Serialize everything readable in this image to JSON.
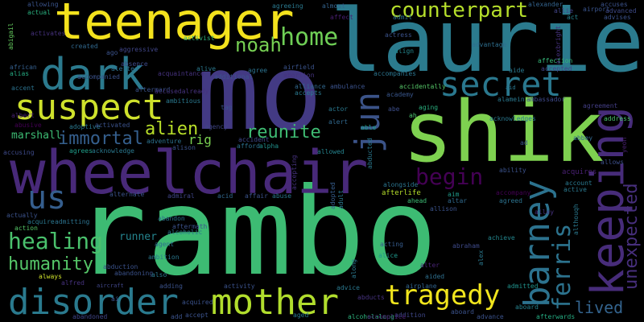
{
  "words": [
    {
      "text": "rambo",
      "color": "#3dbb73"
    },
    {
      "text": "mo",
      "color": "#433a84"
    },
    {
      "text": "laurie",
      "color": "#2b7b8e"
    },
    {
      "text": "shik",
      "color": "#7ed150"
    },
    {
      "text": "wheelchair",
      "color": "#482979"
    },
    {
      "text": "teenager",
      "color": "#f3e21d"
    },
    {
      "text": "keeping",
      "color": "#472c7a"
    },
    {
      "text": "dark",
      "color": "#2b7a8e"
    },
    {
      "text": "suspect",
      "color": "#cee12c"
    },
    {
      "text": "secret",
      "color": "#2a788e"
    },
    {
      "text": "barney",
      "color": "#2c728e"
    },
    {
      "text": "disorder",
      "color": "#2a7a8e"
    },
    {
      "text": "mother",
      "color": "#b1dd2d"
    },
    {
      "text": "jun",
      "color": "#3b5388"
    },
    {
      "text": "home",
      "color": "#6fcf56"
    },
    {
      "text": "us",
      "color": "#355e8d"
    },
    {
      "text": "tragedy",
      "color": "#f1e51d"
    },
    {
      "text": "ferris",
      "color": "#2c738e"
    },
    {
      "text": "counterpart",
      "color": "#b5de2b"
    },
    {
      "text": "noah",
      "color": "#77d153"
    },
    {
      "text": "begin",
      "color": "#440154"
    },
    {
      "text": "healing",
      "color": "#4ac16d"
    },
    {
      "text": "humanity",
      "color": "#55c668"
    },
    {
      "text": "immortal",
      "color": "#355f8d"
    },
    {
      "text": "alien",
      "color": "#b8de29"
    },
    {
      "text": "reunite",
      "color": "#3fbc73"
    },
    {
      "text": "unexpected",
      "color": "#472f7d"
    },
    {
      "text": "lived",
      "color": "#33638d"
    },
    {
      "text": "marshall",
      "color": "#3dbc74"
    },
    {
      "text": "rig",
      "color": "#7ad151"
    },
    {
      "text": "runner",
      "color": "#25848e"
    },
    {
      "text": "activist",
      "color": "#30b07a"
    },
    {
      "text": "allowing",
      "color": "#3a548c"
    },
    {
      "text": "actual",
      "color": "#2ab07f"
    },
    {
      "text": "abigail",
      "color": "#65cb5e"
    },
    {
      "text": "aircraft",
      "color": "#404688"
    },
    {
      "text": "african",
      "color": "#355f8d"
    },
    {
      "text": "alias",
      "color": "#25ab82"
    },
    {
      "text": "affection",
      "color": "#35b779"
    },
    {
      "text": "accepted",
      "color": "#414487"
    },
    {
      "text": "alexander",
      "color": "#33638d"
    },
    {
      "text": "aid",
      "color": "#2a768e"
    },
    {
      "text": "advises",
      "color": "#3b528b"
    },
    {
      "text": "ambassador",
      "color": "#3e4989"
    },
    {
      "text": "agreement",
      "color": "#433e85"
    },
    {
      "text": "address",
      "color": "#4ac16d"
    },
    {
      "text": "abbey",
      "color": "#31688e"
    },
    {
      "text": "allows",
      "color": "#3c4f8a"
    },
    {
      "text": "ability",
      "color": "#3b528b"
    },
    {
      "text": "accompany",
      "color": "#440154"
    },
    {
      "text": "agreed",
      "color": "#2c728e"
    },
    {
      "text": "alley",
      "color": "#46327e"
    },
    {
      "text": "achieve",
      "color": "#24878e"
    },
    {
      "text": "abraham",
      "color": "#3e4a89"
    },
    {
      "text": "aboard",
      "color": "#26828e"
    },
    {
      "text": "admitted",
      "color": "#20928c"
    },
    {
      "text": "afterwards",
      "color": "#25ac82"
    },
    {
      "text": "advance",
      "color": "#3b528b"
    },
    {
      "text": "alcoholalong",
      "color": "#2db27d"
    },
    {
      "text": "addition",
      "color": "#3f4788"
    },
    {
      "text": "advice",
      "color": "#2a788e"
    },
    {
      "text": "airplane",
      "color": "#32648e"
    },
    {
      "text": "abducts",
      "color": "#46337f"
    },
    {
      "text": "alice",
      "color": "#1f988b"
    },
    {
      "text": "acting",
      "color": "#365c8d"
    },
    {
      "text": "aided",
      "color": "#2e6f8e"
    },
    {
      "text": "alter",
      "color": "#482475"
    },
    {
      "text": "afterlife",
      "color": "#b5de2b"
    },
    {
      "text": "ahead",
      "color": "#3dbc74"
    },
    {
      "text": "allison",
      "color": "#3b528b"
    },
    {
      "text": "aim",
      "color": "#1f9a8a"
    },
    {
      "text": "altar",
      "color": "#306a8e"
    },
    {
      "text": "adopted",
      "color": "#365d8d"
    },
    {
      "text": "adult",
      "color": "#2a788e"
    },
    {
      "text": "allowed",
      "color": "#25838e"
    },
    {
      "text": "alert",
      "color": "#31688e"
    },
    {
      "text": "able",
      "color": "#1f9e89"
    },
    {
      "text": "alongside",
      "color": "#2b748e"
    },
    {
      "text": "accident",
      "color": "#3f4889"
    },
    {
      "text": "afford",
      "color": "#2c718e"
    },
    {
      "text": "alpha",
      "color": "#21918c"
    },
    {
      "text": "aging",
      "color": "#2ab07f"
    },
    {
      "text": "abe",
      "color": "#3d4e8a"
    },
    {
      "text": "academy",
      "color": "#39568c"
    },
    {
      "text": "ah",
      "color": "#4ac16d"
    },
    {
      "text": "actress",
      "color": "#3b528b"
    },
    {
      "text": "align",
      "color": "#24878e"
    },
    {
      "text": "agreeing",
      "color": "#2a788e"
    },
    {
      "text": "almost",
      "color": "#33638d"
    },
    {
      "text": "affect",
      "color": "#482071"
    },
    {
      "text": "admit",
      "color": "#2c728e"
    },
    {
      "text": "airport",
      "color": "#3a548c"
    },
    {
      "text": "act",
      "color": "#26828e"
    },
    {
      "text": "accuses",
      "color": "#3b528b"
    },
    {
      "text": "advanced",
      "color": "#3e4a89"
    },
    {
      "text": "alexbright",
      "color": "#46327e"
    },
    {
      "text": "allie",
      "color": "#414487"
    },
    {
      "text": "advantage",
      "color": "#2e6e8e"
    },
    {
      "text": "airfield",
      "color": "#3a538b"
    },
    {
      "text": "abortion",
      "color": "#46337f"
    },
    {
      "text": "alliance",
      "color": "#31688e"
    },
    {
      "text": "accepts",
      "color": "#2a788e"
    },
    {
      "text": "accompanies",
      "color": "#2b748e"
    },
    {
      "text": "accidentally",
      "color": "#55c668"
    },
    {
      "text": "agree",
      "color": "#2c728e"
    },
    {
      "text": "additional",
      "color": "#3b528b"
    },
    {
      "text": "alive",
      "color": "#2a788e"
    },
    {
      "text": "absence",
      "color": "#3e4a89"
    },
    {
      "text": "acquaintance",
      "color": "#46327e"
    },
    {
      "text": "alerted",
      "color": "#2e6f8e"
    },
    {
      "text": "created",
      "color": "#31688e"
    },
    {
      "text": "accompanied",
      "color": "#3b528b"
    },
    {
      "text": "aggressive",
      "color": "#404688"
    },
    {
      "text": "ago",
      "color": "#3b528b"
    },
    {
      "text": "ambitious",
      "color": "#2a788e"
    },
    {
      "text": "aftermard",
      "color": "#3b528b"
    },
    {
      "text": "accusedalready",
      "color": "#46327e"
    },
    {
      "text": "albert",
      "color": "#482071"
    },
    {
      "text": "accent",
      "color": "#2c728e"
    },
    {
      "text": "activates",
      "color": "#46327e"
    },
    {
      "text": "abusive",
      "color": "#440154"
    },
    {
      "text": "adoptive",
      "color": "#2a788e"
    },
    {
      "text": "activated",
      "color": "#3b528b"
    },
    {
      "text": "agency",
      "color": "#404688"
    },
    {
      "text": "tag",
      "color": "#3b528b"
    },
    {
      "text": "actor",
      "color": "#2a788e"
    },
    {
      "text": "accusing",
      "color": "#3e4a89"
    },
    {
      "text": "agrees",
      "color": "#1f9e89"
    },
    {
      "text": "acknowledge",
      "color": "#2a788e"
    },
    {
      "text": "adventure",
      "color": "#2c728e"
    },
    {
      "text": "alison",
      "color": "#3b528b"
    },
    {
      "text": "accepting",
      "color": "#46327e"
    },
    {
      "text": "affair",
      "color": "#3b528b"
    },
    {
      "text": "abuse",
      "color": "#2a788e"
    },
    {
      "text": "acid",
      "color": "#31688e"
    },
    {
      "text": "admiral",
      "color": "#404688"
    },
    {
      "text": "alternate",
      "color": "#3b528b"
    },
    {
      "text": "actually",
      "color": "#3b528b"
    },
    {
      "text": "acquire",
      "color": "#2a788e"
    },
    {
      "text": "admitting",
      "color": "#2c728e"
    },
    {
      "text": "action",
      "color": "#55c668"
    },
    {
      "text": "abandon",
      "color": "#2c728e"
    },
    {
      "text": "aftermath",
      "color": "#3b528b"
    },
    {
      "text": "alcoholic",
      "color": "#2a788e"
    },
    {
      "text": "agent",
      "color": "#2e6f8e"
    },
    {
      "text": "ambition",
      "color": "#2a788e"
    },
    {
      "text": "abduction",
      "color": "#3b528b"
    },
    {
      "text": "abandoning",
      "color": "#3b528b"
    },
    {
      "text": "also",
      "color": "#2a788e"
    },
    {
      "text": "always",
      "color": "#cee12c"
    },
    {
      "text": "alfred",
      "color": "#46327e"
    },
    {
      "text": "adding",
      "color": "#3b528b"
    },
    {
      "text": "activity",
      "color": "#3b528b"
    },
    {
      "text": "abandoned",
      "color": "#404688"
    },
    {
      "text": "acquired",
      "color": "#3b528b"
    },
    {
      "text": "accept",
      "color": "#3b528b"
    },
    {
      "text": "aged",
      "color": "#2a788e"
    },
    {
      "text": "add",
      "color": "#3b528b"
    },
    {
      "text": "aboard",
      "color": "#3b528b"
    },
    {
      "text": "ai",
      "color": "#3b528b"
    },
    {
      "text": "ad",
      "color": "#3b528b"
    },
    {
      "text": "ambulance",
      "color": "#3b528b"
    },
    {
      "text": "acknowledges",
      "color": "#2a788e"
    },
    {
      "text": "alamein",
      "color": "#2a788e"
    },
    {
      "text": "aide",
      "color": "#2a788e"
    },
    {
      "text": "account",
      "color": "#2a788e"
    },
    {
      "text": "active",
      "color": "#2a788e"
    },
    {
      "text": "althouqh",
      "color": "#2a788e"
    },
    {
      "text": "acquires",
      "color": "#482071"
    },
    {
      "text": "yeon",
      "color": "#482071"
    },
    {
      "text": "alex",
      "color": "#2a788e"
    },
    {
      "text": "accomplice",
      "color": "#482071"
    },
    {
      "text": "along",
      "color": "#2a788e"
    },
    {
      "text": "abducted",
      "color": "#2a788e"
    },
    {
      "text": "sang",
      "color": "#3b528b"
    }
  ]
}
